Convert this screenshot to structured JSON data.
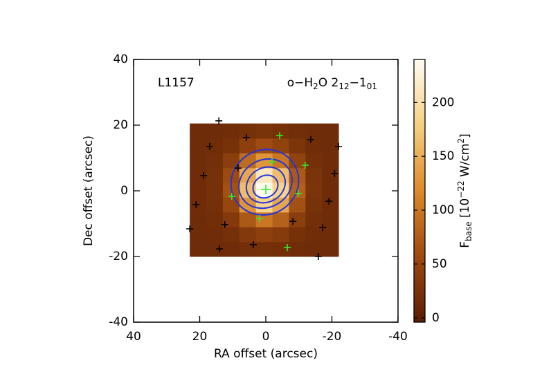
{
  "chart_data": {
    "type": "heatmap",
    "source": "L1157",
    "title_parts": {
      "a": "o−H",
      "b": "2",
      "c": "O 2",
      "d": "12",
      "e": "−1",
      "f": "01"
    },
    "x_label": "RA offset (arcsec)",
    "y_label": "Dec offset (arcsec)",
    "xlim": [
      40,
      -40
    ],
    "xticks": [
      40,
      20,
      0,
      -20,
      -40
    ],
    "ylim": [
      -40,
      40
    ],
    "yticks": [
      -40,
      -20,
      0,
      20,
      40
    ],
    "x_edges": [
      23,
      18,
      13,
      8,
      3,
      -2,
      -7,
      -12,
      -17,
      -22
    ],
    "y_edges": [
      -20,
      -15.5,
      -11,
      -6.5,
      -2,
      2.5,
      7,
      11.5,
      16,
      20.5
    ],
    "z": [
      [
        15,
        15,
        16,
        19,
        21,
        20,
        17,
        15,
        15
      ],
      [
        15,
        16,
        21,
        34,
        43,
        36,
        23,
        17,
        15
      ],
      [
        15,
        18,
        34,
        71,
        100,
        80,
        40,
        20,
        15
      ],
      [
        16,
        21,
        52,
        127,
        185,
        144,
        64,
        24,
        16
      ],
      [
        16,
        23,
        64,
        162,
        239,
        184,
        79,
        27,
        16
      ],
      [
        16,
        22,
        57,
        144,
        211,
        163,
        71,
        26,
        16
      ],
      [
        15,
        19,
        40,
        89,
        128,
        100,
        47,
        21,
        16
      ],
      [
        15,
        17,
        24,
        43,
        58,
        47,
        27,
        17,
        15
      ],
      [
        15,
        15,
        17,
        22,
        26,
        23,
        18,
        16,
        15
      ]
    ],
    "colormap": [
      "#5a1e04",
      "#9c4a10",
      "#dc8a2c",
      "#f6cf82",
      "#fffcf2"
    ],
    "zlim": [
      -4,
      240
    ],
    "zticks": [
      0,
      50,
      100,
      150,
      200
    ],
    "colorbar_label": {
      "a": "F",
      "b": "base",
      "c": " [10",
      "d": "−22",
      "e": " W/cm",
      "f": "2",
      "g": "]"
    },
    "contour_color": "#2233dd",
    "contours": [
      {
        "center": [
          0.3,
          2.6
        ],
        "radii": [
          10.4,
          9.8
        ],
        "angle": -30
      },
      {
        "center": [
          0.1,
          2.2
        ],
        "radii": [
          8.3,
          7.2
        ],
        "angle": -30
      },
      {
        "center": [
          0,
          1.8
        ],
        "radii": [
          6.1,
          5.2
        ],
        "angle": -30
      },
      {
        "center": [
          0.1,
          1.3
        ],
        "radii": [
          3.9,
          3.3
        ],
        "angle": -30
      }
    ],
    "series": [
      {
        "color": "#000000",
        "x": [
          14.2,
          17,
          5.9,
          -13.6,
          -22,
          8.4,
          18.8,
          -20.8,
          21.1,
          -19.1,
          12.4,
          -8.2,
          23,
          -17.2,
          14,
          3.8,
          -15.9
        ],
        "y": [
          21.3,
          13.5,
          16.2,
          15.6,
          13.5,
          6.9,
          4.6,
          5.3,
          -4.2,
          -3.2,
          -10.3,
          -9.3,
          -11.6,
          -11.2,
          -17.7,
          -16.4,
          -20
        ]
      },
      {
        "color": "#33ee22",
        "x": [
          -4.2,
          -1.9,
          -11.9,
          10.3,
          -9.8,
          1.9,
          -6.5,
          0
        ],
        "y": [
          16.8,
          8.8,
          7.8,
          -1.7,
          -0.8,
          -8.4,
          -17.3,
          0.4
        ]
      }
    ]
  }
}
